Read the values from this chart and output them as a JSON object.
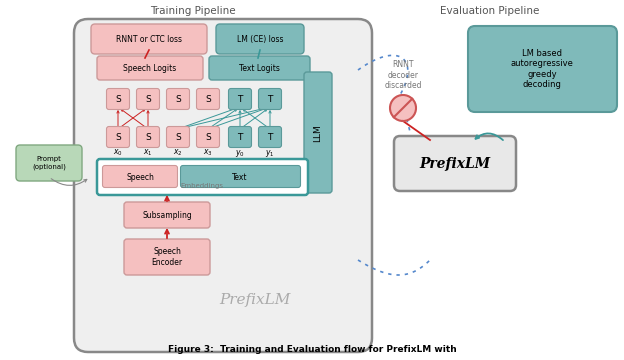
{
  "title_train": "Training Pipeline",
  "title_eval": "Evaluation Pipeline",
  "caption": "Figure 3:  Training and Evaluation flow for PrefixLM with",
  "colors": {
    "pink_light": "#F5C0C0",
    "teal_light": "#7FBABA",
    "teal_medium": "#6AACAC",
    "green_box": "#A8CCA8",
    "gray_light": "#E8E8E8",
    "gray_med": "#AAAAAA",
    "gray_dark": "#777777",
    "white": "#FFFFFF",
    "red_line": "#CC2222",
    "teal_line": "#3A9898",
    "blue_dot": "#5588CC",
    "outer_border": "#888888"
  }
}
